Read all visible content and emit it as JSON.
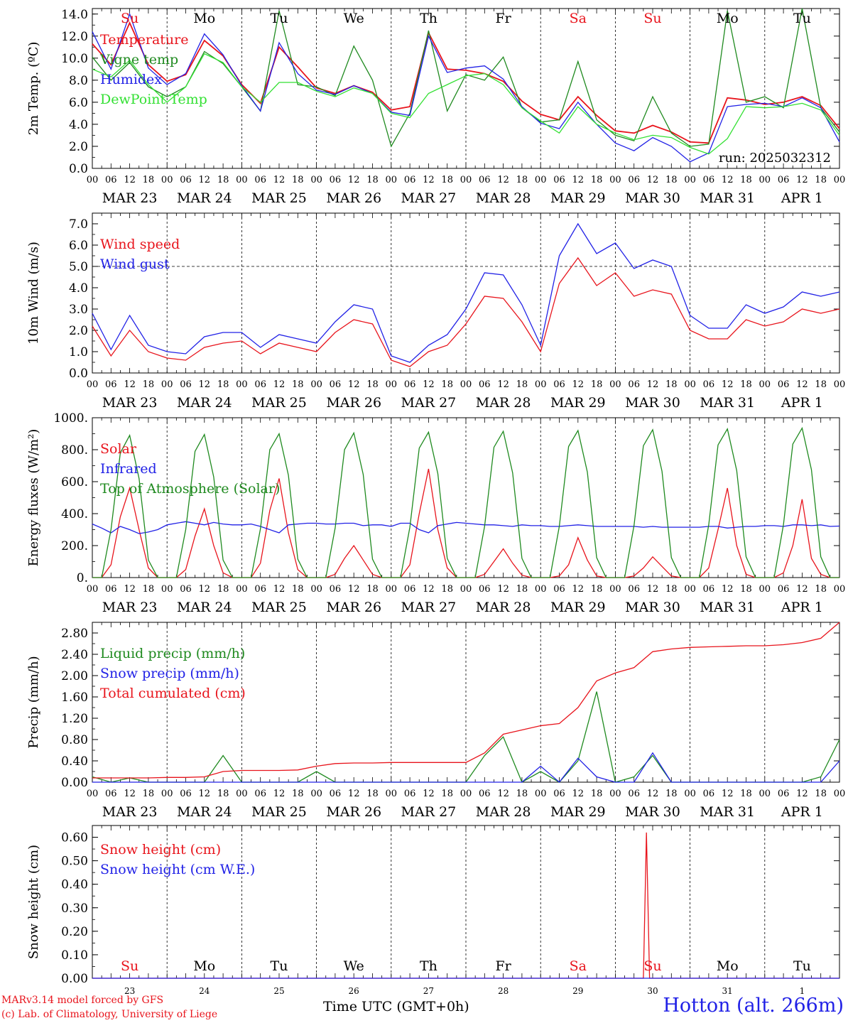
{
  "footer": {
    "credit_line1": "MARv3.14 model forced by GFS",
    "credit_line2": "(c) Lab. of Climatology, University of Liege",
    "x_axis_title": "Time UTC (GMT+0h)",
    "station": "Hotton (alt. 266m)"
  },
  "colors": {
    "red": "#e8141c",
    "green": "#1f8a1f",
    "blue": "#2121e6",
    "lightgreen": "#33e033",
    "black": "#000000",
    "grid": "#555555"
  },
  "time": {
    "hour_ticks": [
      "00",
      "06",
      "12",
      "18"
    ],
    "date_labels": [
      "MAR 23",
      "MAR 24",
      "MAR 25",
      "MAR 26",
      "MAR 27",
      "MAR 28",
      "MAR 29",
      "MAR 30",
      "MAR 31",
      "APR  1"
    ],
    "weekday_labels": [
      "Su",
      "Mo",
      "Tu",
      "We",
      "Th",
      "Fr",
      "Sa",
      "Su",
      "Mo",
      "Tu"
    ],
    "weekend_flags": [
      true,
      false,
      false,
      false,
      false,
      false,
      true,
      true,
      false,
      false
    ],
    "day_numbers": [
      "23",
      "24",
      "25",
      "26",
      "27",
      "28",
      "29",
      "30",
      "31",
      "1"
    ]
  },
  "chart_data": [
    {
      "type": "line",
      "ylabel": "2m Temp. (ºC)",
      "ylim": [
        0,
        14.5
      ],
      "yticks": [
        0,
        2,
        4,
        6,
        8,
        10,
        12,
        14
      ],
      "yfmt": 1,
      "annotation": "run: 2025032312",
      "legend": [
        "Temperature",
        "Vigne temp",
        "Humidex",
        "DewPoint Temp"
      ],
      "x_hours": [
        0,
        6,
        12,
        18,
        24,
        30,
        36,
        42,
        48,
        54,
        60,
        66,
        72,
        78,
        84,
        90,
        96,
        102,
        108,
        114,
        120,
        126,
        132,
        138,
        144,
        150,
        156,
        162,
        168,
        174,
        180,
        186,
        192,
        198,
        204,
        210,
        216,
        222,
        228,
        234,
        240
      ],
      "series": [
        {
          "name": "Temperature",
          "color": "red",
          "values": [
            11.3,
            9.4,
            13.2,
            9.4,
            7.9,
            8.5,
            11.6,
            10.2,
            7.6,
            5.9,
            11.0,
            9.2,
            7.3,
            6.8,
            7.5,
            6.9,
            5.3,
            5.6,
            12.3,
            9.0,
            8.9,
            8.6,
            7.9,
            6.1,
            4.9,
            4.4,
            6.5,
            4.8,
            3.4,
            3.2,
            3.9,
            3.3,
            2.4,
            2.3,
            6.4,
            6.2,
            5.8,
            6.0,
            6.5,
            5.7,
            3.6
          ]
        },
        {
          "name": "Vigne temp",
          "color": "green",
          "values": [
            10.1,
            8.0,
            9.6,
            7.4,
            6.5,
            7.4,
            10.6,
            9.5,
            7.4,
            5.2,
            14.3,
            7.6,
            7.4,
            6.6,
            11.1,
            8.0,
            2.0,
            5.0,
            12.5,
            5.2,
            8.5,
            8.0,
            10.1,
            5.5,
            4.2,
            4.4,
            9.7,
            4.4,
            3.0,
            2.5,
            6.5,
            3.2,
            2.0,
            2.2,
            14.3,
            6.0,
            6.5,
            5.5,
            14.5,
            5.5,
            3.3
          ]
        },
        {
          "name": "Humidex",
          "color": "blue",
          "values": [
            12.4,
            9.0,
            14.0,
            9.1,
            7.6,
            8.6,
            12.2,
            10.3,
            7.5,
            5.2,
            11.4,
            8.6,
            7.1,
            6.7,
            7.5,
            6.8,
            5.1,
            4.8,
            12.0,
            8.7,
            9.1,
            9.3,
            8.1,
            5.6,
            4.1,
            3.6,
            6.0,
            4.0,
            2.3,
            1.6,
            2.8,
            2.0,
            0.6,
            1.4,
            5.6,
            5.8,
            5.9,
            5.6,
            6.4,
            5.5,
            2.4
          ]
        },
        {
          "name": "DewPoint Temp",
          "color": "lightgreen",
          "values": [
            9.0,
            8.3,
            9.8,
            7.6,
            6.0,
            7.4,
            10.4,
            9.6,
            7.4,
            6.0,
            7.8,
            7.8,
            7.0,
            6.5,
            7.3,
            6.8,
            5.0,
            4.6,
            6.8,
            7.6,
            8.4,
            8.6,
            7.6,
            5.5,
            4.3,
            3.2,
            5.6,
            4.0,
            3.2,
            2.6,
            3.0,
            2.8,
            1.9,
            1.3,
            2.7,
            5.6,
            5.5,
            5.6,
            5.9,
            5.3,
            3.0
          ]
        }
      ]
    },
    {
      "type": "line",
      "ylabel": "10m Wind (m/s)",
      "ylim": [
        0,
        7.5
      ],
      "yticks": [
        0,
        1,
        2,
        3,
        4,
        5,
        6,
        7
      ],
      "yfmt": 1,
      "hline": 5.0,
      "legend": [
        "Wind speed",
        "Wind gust"
      ],
      "x_hours": [
        0,
        6,
        12,
        18,
        24,
        30,
        36,
        42,
        48,
        54,
        60,
        66,
        72,
        78,
        84,
        90,
        96,
        102,
        108,
        114,
        120,
        126,
        132,
        138,
        144,
        150,
        156,
        162,
        168,
        174,
        180,
        186,
        192,
        198,
        204,
        210,
        216,
        222,
        228,
        234,
        240
      ],
      "series": [
        {
          "name": "Wind speed",
          "color": "red",
          "values": [
            2.2,
            0.8,
            2.0,
            1.0,
            0.7,
            0.6,
            1.2,
            1.4,
            1.5,
            0.9,
            1.4,
            1.2,
            1.0,
            1.9,
            2.5,
            2.3,
            0.6,
            0.3,
            1.0,
            1.3,
            2.3,
            3.6,
            3.5,
            2.4,
            1.0,
            4.2,
            5.4,
            4.1,
            4.7,
            3.6,
            3.9,
            3.7,
            2.0,
            1.6,
            1.6,
            2.5,
            2.2,
            2.4,
            3.0,
            2.8,
            3.0
          ]
        },
        {
          "name": "Wind gust",
          "color": "blue",
          "values": [
            2.8,
            1.1,
            2.7,
            1.3,
            1.0,
            0.9,
            1.7,
            1.9,
            1.9,
            1.2,
            1.8,
            1.6,
            1.4,
            2.4,
            3.2,
            3.0,
            0.8,
            0.5,
            1.3,
            1.8,
            3.0,
            4.7,
            4.6,
            3.2,
            1.3,
            5.5,
            7.0,
            5.6,
            6.1,
            4.9,
            5.3,
            5.0,
            2.7,
            2.1,
            2.1,
            3.2,
            2.8,
            3.1,
            3.8,
            3.6,
            3.8
          ]
        }
      ]
    },
    {
      "type": "line",
      "ylabel": "Energy fluxes (W/m²)",
      "ylim": [
        0,
        1000
      ],
      "yticks": [
        0,
        200,
        400,
        600,
        800,
        1000
      ],
      "yfmt": 0,
      "legend": [
        "Solar",
        "Infrared",
        "Top of Atmosphere (Solar)"
      ],
      "x_hours": [
        0,
        3,
        6,
        9,
        12,
        15,
        18,
        21,
        24,
        27,
        30,
        33,
        36,
        39,
        42,
        45,
        48,
        51,
        54,
        57,
        60,
        63,
        66,
        69,
        72,
        75,
        78,
        81,
        84,
        87,
        90,
        93,
        96,
        99,
        102,
        105,
        108,
        111,
        114,
        117,
        120,
        123,
        126,
        129,
        132,
        135,
        138,
        141,
        144,
        147,
        150,
        153,
        156,
        159,
        162,
        165,
        168,
        171,
        174,
        177,
        180,
        183,
        186,
        189,
        192,
        195,
        198,
        201,
        204,
        207,
        210,
        213,
        216,
        219,
        222,
        225,
        228,
        231,
        234,
        237,
        240
      ],
      "series": [
        {
          "name": "Solar",
          "color": "red",
          "values": [
            0,
            0,
            80,
            380,
            560,
            300,
            60,
            0,
            0,
            0,
            50,
            260,
            430,
            200,
            30,
            0,
            0,
            0,
            90,
            420,
            620,
            280,
            50,
            0,
            0,
            0,
            20,
            120,
            200,
            110,
            20,
            0,
            0,
            0,
            80,
            400,
            680,
            300,
            60,
            0,
            0,
            0,
            20,
            100,
            180,
            90,
            15,
            0,
            0,
            0,
            10,
            80,
            250,
            110,
            10,
            0,
            0,
            0,
            10,
            60,
            130,
            70,
            10,
            0,
            0,
            0,
            60,
            300,
            560,
            200,
            20,
            0,
            0,
            0,
            30,
            200,
            490,
            120,
            20,
            0,
            0
          ]
        },
        {
          "name": "Infrared",
          "color": "blue",
          "values": [
            335,
            310,
            280,
            320,
            300,
            275,
            285,
            300,
            330,
            340,
            350,
            340,
            330,
            345,
            335,
            330,
            330,
            335,
            320,
            300,
            280,
            330,
            335,
            340,
            340,
            335,
            335,
            340,
            340,
            325,
            330,
            330,
            320,
            340,
            340,
            300,
            280,
            325,
            335,
            345,
            340,
            335,
            330,
            330,
            325,
            320,
            330,
            325,
            325,
            320,
            320,
            325,
            330,
            325,
            320,
            320,
            320,
            320,
            320,
            315,
            320,
            315,
            315,
            315,
            315,
            315,
            320,
            320,
            310,
            315,
            320,
            320,
            325,
            325,
            320,
            330,
            330,
            325,
            330,
            320,
            322
          ]
        },
        {
          "name": "Top of Atmosphere (Solar)",
          "color": "green",
          "values": [
            0,
            0,
            300,
            780,
            890,
            620,
            110,
            0,
            0,
            0,
            300,
            790,
            895,
            630,
            110,
            0,
            0,
            0,
            305,
            800,
            900,
            640,
            115,
            0,
            0,
            0,
            310,
            800,
            905,
            645,
            115,
            0,
            0,
            0,
            315,
            810,
            910,
            650,
            120,
            0,
            0,
            0,
            320,
            815,
            915,
            655,
            120,
            0,
            0,
            0,
            320,
            820,
            920,
            660,
            125,
            0,
            0,
            0,
            325,
            825,
            925,
            665,
            125,
            0,
            0,
            0,
            330,
            830,
            930,
            670,
            130,
            0,
            0,
            0,
            330,
            835,
            935,
            675,
            130,
            0,
            0
          ]
        }
      ]
    },
    {
      "type": "line",
      "ylabel": "Precip (mm/h)",
      "ylim": [
        0,
        3.0
      ],
      "yticks": [
        0,
        0.4,
        0.8,
        1.2,
        1.6,
        2.0,
        2.4,
        2.8
      ],
      "yfmt": 2,
      "legend": [
        "Liquid precip (mm/h)",
        "Snow precip (mm/h)",
        "Total cumulated (cm)"
      ],
      "x_hours": [
        0,
        6,
        12,
        18,
        24,
        30,
        36,
        42,
        48,
        54,
        60,
        66,
        72,
        78,
        84,
        90,
        96,
        102,
        108,
        114,
        120,
        126,
        132,
        138,
        144,
        150,
        156,
        162,
        168,
        174,
        180,
        186,
        192,
        198,
        204,
        210,
        216,
        222,
        228,
        234,
        240
      ],
      "series": [
        {
          "name": "Liquid precip (mm/h)",
          "color": "green",
          "values": [
            0.1,
            0,
            0.08,
            0,
            0,
            0,
            0,
            0.5,
            0,
            0,
            0,
            0,
            0.2,
            0,
            0,
            0,
            0,
            0,
            0,
            0,
            0,
            0.5,
            0.85,
            0,
            0.2,
            0,
            0.4,
            1.7,
            0,
            0.1,
            0.5,
            0,
            0,
            0,
            0,
            0,
            0,
            0,
            0,
            0.1,
            0.8
          ]
        },
        {
          "name": "Snow precip (mm/h)",
          "color": "blue",
          "values": [
            0,
            0,
            0,
            0,
            0,
            0,
            0,
            0,
            0,
            0,
            0,
            0,
            0,
            0,
            0,
            0,
            0,
            0,
            0,
            0,
            0,
            0,
            0,
            0,
            0.3,
            0,
            0.45,
            0.1,
            0,
            0,
            0.55,
            0,
            0,
            0,
            0,
            0,
            0,
            0,
            0,
            0,
            0.4
          ]
        },
        {
          "name": "Total cumulated (cm)",
          "color": "red",
          "values": [
            0.08,
            0.08,
            0.08,
            0.08,
            0.09,
            0.09,
            0.1,
            0.2,
            0.22,
            0.22,
            0.22,
            0.23,
            0.3,
            0.35,
            0.36,
            0.36,
            0.37,
            0.37,
            0.37,
            0.37,
            0.37,
            0.55,
            0.9,
            0.98,
            1.06,
            1.1,
            1.4,
            1.9,
            2.05,
            2.15,
            2.45,
            2.5,
            2.53,
            2.54,
            2.55,
            2.56,
            2.56,
            2.58,
            2.62,
            2.7,
            3.0
          ]
        }
      ]
    },
    {
      "type": "line",
      "ylabel": "Snow height (cm)",
      "ylim": [
        0,
        0.65
      ],
      "yticks": [
        0,
        0.1,
        0.2,
        0.3,
        0.4,
        0.5,
        0.6
      ],
      "yfmt": 2,
      "legend": [
        "Snow height (cm)",
        "Snow height (cm W.E.)"
      ],
      "x_hours": [
        0,
        12,
        24,
        36,
        48,
        60,
        72,
        84,
        96,
        108,
        120,
        132,
        144,
        156,
        168,
        174,
        177,
        178,
        179,
        180,
        186,
        198,
        210,
        222,
        234,
        240
      ],
      "series": [
        {
          "name": "Snow height (cm)",
          "color": "red",
          "values": [
            0,
            0,
            0,
            0,
            0,
            0,
            0,
            0,
            0,
            0,
            0,
            0,
            0,
            0,
            0,
            0,
            0,
            0.62,
            0,
            0,
            0,
            0,
            0,
            0,
            0,
            0
          ]
        },
        {
          "name": "Snow height (cm W.E.)",
          "color": "blue",
          "values": [
            0,
            0,
            0,
            0,
            0,
            0,
            0,
            0,
            0,
            0,
            0,
            0,
            0,
            0,
            0,
            0,
            0,
            0,
            0,
            0,
            0,
            0,
            0,
            0,
            0,
            0
          ]
        }
      ]
    }
  ]
}
